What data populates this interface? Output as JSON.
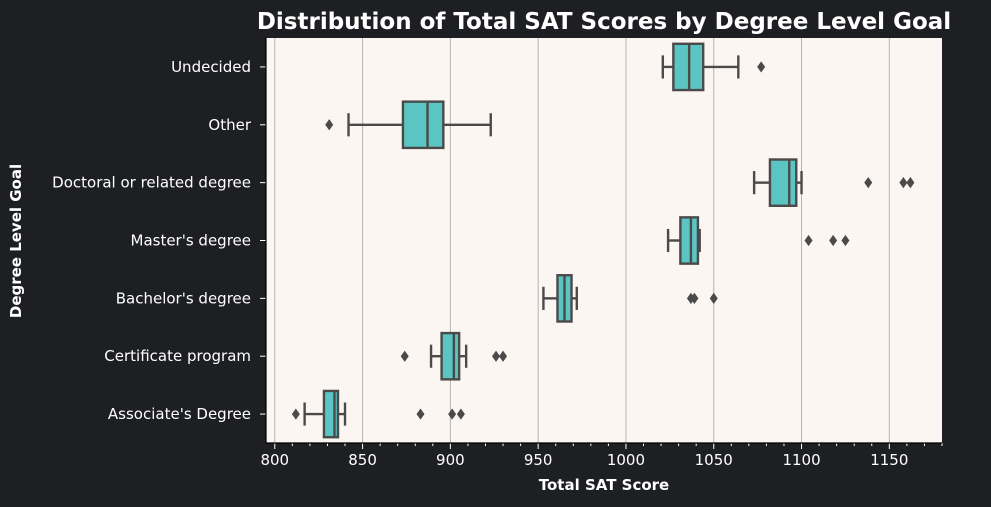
{
  "chart_data": {
    "type": "box",
    "orientation": "horizontal",
    "title": "Distribution of Total SAT Scores by Degree Level Goal",
    "xlabel": "Total SAT Score",
    "ylabel": "Degree Level Goal",
    "xlim": [
      795,
      1180
    ],
    "xticks": [
      800,
      850,
      900,
      950,
      1000,
      1050,
      1100,
      1150
    ],
    "grid": "vertical",
    "categories": [
      "Undecided",
      "Other",
      "Doctoral or related degree",
      "Master's degree",
      "Bachelor's degree",
      "Certificate program",
      "Associate's Degree"
    ],
    "boxes": [
      {
        "category": "Undecided",
        "whislo": 1021,
        "q1": 1027,
        "med": 1036,
        "q3": 1044,
        "whishi": 1064,
        "fliers": [
          1077
        ]
      },
      {
        "category": "Other",
        "whislo": 842,
        "q1": 873,
        "med": 887,
        "q3": 896,
        "whishi": 923,
        "fliers": [
          831
        ]
      },
      {
        "category": "Doctoral or related degree",
        "whislo": 1073,
        "q1": 1082,
        "med": 1093,
        "q3": 1097,
        "whishi": 1100,
        "fliers": [
          1138,
          1158,
          1162
        ]
      },
      {
        "category": "Master's degree",
        "whislo": 1024,
        "q1": 1031,
        "med": 1037,
        "q3": 1041,
        "whishi": 1042,
        "fliers": [
          1104,
          1118,
          1125
        ]
      },
      {
        "category": "Bachelor's degree",
        "whislo": 953,
        "q1": 961,
        "med": 965,
        "q3": 969,
        "whishi": 972,
        "fliers": [
          1037,
          1039,
          1050
        ]
      },
      {
        "category": "Certificate program",
        "whislo": 889,
        "q1": 895,
        "med": 902,
        "q3": 905,
        "whishi": 909,
        "fliers": [
          874,
          926,
          930
        ]
      },
      {
        "category": "Associate's Degree",
        "whislo": 817,
        "q1": 828,
        "med": 834,
        "q3": 836,
        "whishi": 840,
        "fliers": [
          812,
          883,
          901,
          906
        ]
      }
    ]
  },
  "colors": {
    "figure_background": "#1e1f22",
    "plot_background": "#fcf6f3",
    "box_fill": "#5bc5c3",
    "box_edge": "#4a4a4a",
    "grid": "#b3b3b3",
    "text": "#ffffff"
  }
}
